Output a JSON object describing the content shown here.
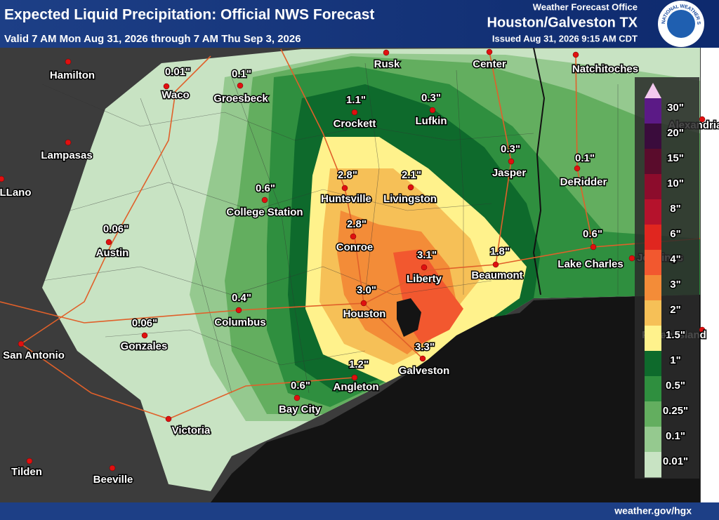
{
  "header": {
    "title": "Expected Liquid Precipitation: Official NWS Forecast",
    "valid": "Valid 7 AM Mon Aug 31, 2026 through 7 AM Thu Sep 3, 2026",
    "office": "Weather Forecast Office",
    "location": "Houston/Galveston TX",
    "issued": "Issued Aug 31, 2026 9:15 AM CDT",
    "logo_text": "NATIONAL WEATHER SERVICE"
  },
  "cities": [
    {
      "name": "Hamilton"
    },
    {
      "name": "Waco",
      "amount": "0.01\""
    },
    {
      "name": "Groesbeck",
      "amount": "0.1\""
    },
    {
      "name": "Rusk"
    },
    {
      "name": "Center"
    },
    {
      "name": "Natchitoches"
    },
    {
      "name": "Crockett",
      "amount": "1.1\""
    },
    {
      "name": "Lufkin",
      "amount": "0.3\""
    },
    {
      "name": "Lampasas"
    },
    {
      "name": "Jasper",
      "amount": "0.3\""
    },
    {
      "name": "DeRidder",
      "amount": "0.1\""
    },
    {
      "name": "LLano"
    },
    {
      "name": "Huntsville",
      "amount": "2.8\""
    },
    {
      "name": "Livingston",
      "amount": "2.1\""
    },
    {
      "name": "College Station",
      "amount": "0.6\""
    },
    {
      "name": "Austin",
      "amount": "0.06\""
    },
    {
      "name": "Conroe",
      "amount": "2.8\""
    },
    {
      "name": "Liberty",
      "amount": "3.1\""
    },
    {
      "name": "Beaumont",
      "amount": "1.8\""
    },
    {
      "name": "Lake Charles",
      "amount": "0.6\""
    },
    {
      "name": "Jennings"
    },
    {
      "name": "Houston",
      "amount": "3.0\""
    },
    {
      "name": "Columbus",
      "amount": "0.4\""
    },
    {
      "name": "Gonzales",
      "amount": "0.06\""
    },
    {
      "name": "San Antonio"
    },
    {
      "name": "Galveston",
      "amount": "3.3\""
    },
    {
      "name": "Angleton",
      "amount": "1.2\""
    },
    {
      "name": "Bay City",
      "amount": "0.6\""
    },
    {
      "name": "Victoria"
    },
    {
      "name": "Tilden"
    },
    {
      "name": "Beeville"
    },
    {
      "name": "Alexandria"
    },
    {
      "name": "Pecan Island"
    }
  ],
  "legend": {
    "items": [
      {
        "label": "30\"",
        "color": "#5b1a86"
      },
      {
        "label": "20\"",
        "color": "#3a0c3c"
      },
      {
        "label": "15\"",
        "color": "#5a0c2c"
      },
      {
        "label": "10\"",
        "color": "#8c0c2c"
      },
      {
        "label": "8\"",
        "color": "#b5122c"
      },
      {
        "label": "6\"",
        "color": "#e0261f"
      },
      {
        "label": "4\"",
        "color": "#f2582f"
      },
      {
        "label": "3\"",
        "color": "#f38c38"
      },
      {
        "label": "2\"",
        "color": "#f6c057"
      },
      {
        "label": "1.5\"",
        "color": "#fff28c"
      },
      {
        "label": "1\"",
        "color": "#0e6a2c"
      },
      {
        "label": "0.5\"",
        "color": "#2f8f3f"
      },
      {
        "label": "0.25\"",
        "color": "#63ae5f"
      },
      {
        "label": "0.1\"",
        "color": "#95c98f"
      },
      {
        "label": "0.01\"",
        "color": "#c8e3c3"
      }
    ]
  },
  "footer": {
    "url": "weather.gov/hgx"
  }
}
